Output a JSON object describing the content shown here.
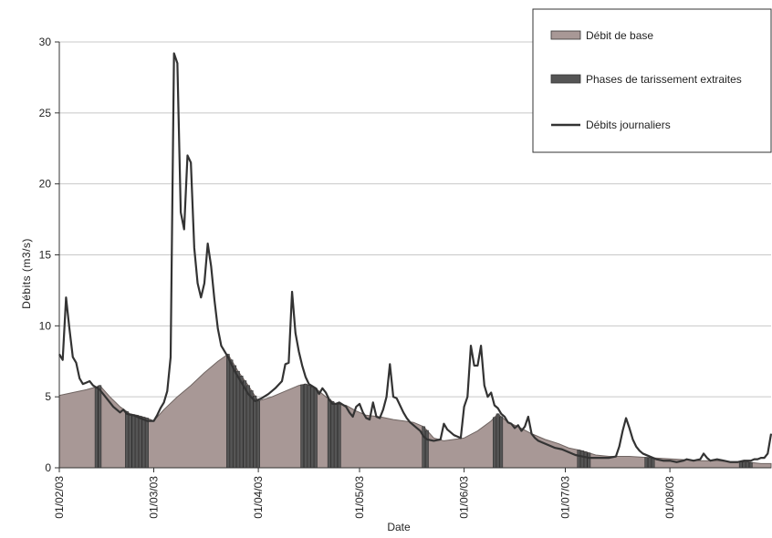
{
  "chart_data": {
    "type": "area",
    "xlabel": "Date",
    "ylabel": "Débits (m3/s)",
    "ylim": [
      0,
      30
    ],
    "y_ticks": [
      0,
      5,
      10,
      15,
      20,
      25,
      30
    ],
    "grid": "horizontal",
    "legend_position": "top-right",
    "x_ticks": [
      {
        "date": "2003-02-01",
        "label": "01/02/03"
      },
      {
        "date": "2003-03-01",
        "label": "01/03/03"
      },
      {
        "date": "2003-04-01",
        "label": "01/04/03"
      },
      {
        "date": "2003-05-01",
        "label": "01/05/03"
      },
      {
        "date": "2003-06-01",
        "label": "01/06/03"
      },
      {
        "date": "2003-07-01",
        "label": "01/07/03"
      },
      {
        "date": "2003-08-01",
        "label": "01/08/03"
      }
    ],
    "xlim": [
      "2003-02-01",
      "2003-08-31"
    ],
    "colors": {
      "base": "#a89896",
      "recession": "#555555",
      "daily": "#333333",
      "grid": "#c8c8c8",
      "axis": "#333333"
    },
    "series": [
      {
        "name": "Débit de base",
        "kind": "area",
        "points": [
          [
            "2003-02-01",
            5.1
          ],
          [
            "2003-02-05",
            5.3
          ],
          [
            "2003-02-09",
            5.5
          ],
          [
            "2003-02-12",
            5.7
          ],
          [
            "2003-02-13",
            5.8
          ],
          [
            "2003-02-16",
            5.0
          ],
          [
            "2003-02-19",
            4.3
          ],
          [
            "2003-02-22",
            3.8
          ],
          [
            "2003-02-24",
            3.7
          ],
          [
            "2003-02-27",
            3.5
          ],
          [
            "2003-03-01",
            3.3
          ],
          [
            "2003-03-04",
            4.1
          ],
          [
            "2003-03-08",
            5.0
          ],
          [
            "2003-03-12",
            5.8
          ],
          [
            "2003-03-16",
            6.7
          ],
          [
            "2003-03-20",
            7.5
          ],
          [
            "2003-03-23",
            8.0
          ],
          [
            "2003-03-26",
            6.8
          ],
          [
            "2003-03-29",
            5.8
          ],
          [
            "2003-04-01",
            4.7
          ],
          [
            "2003-04-05",
            5.0
          ],
          [
            "2003-04-09",
            5.4
          ],
          [
            "2003-04-13",
            5.8
          ],
          [
            "2003-04-15",
            5.9
          ],
          [
            "2003-04-18",
            5.6
          ],
          [
            "2003-04-21",
            5.0
          ],
          [
            "2003-04-24",
            4.5
          ],
          [
            "2003-04-27",
            4.4
          ],
          [
            "2003-04-30",
            4.0
          ],
          [
            "2003-05-03",
            3.7
          ],
          [
            "2003-05-07",
            3.6
          ],
          [
            "2003-05-11",
            3.4
          ],
          [
            "2003-05-14",
            3.3
          ],
          [
            "2003-05-17",
            3.2
          ],
          [
            "2003-05-20",
            2.9
          ],
          [
            "2003-05-23",
            2.1
          ],
          [
            "2003-05-26",
            1.9
          ],
          [
            "2003-05-29",
            2.0
          ],
          [
            "2003-06-01",
            2.1
          ],
          [
            "2003-06-05",
            2.6
          ],
          [
            "2003-06-09",
            3.3
          ],
          [
            "2003-06-11",
            3.8
          ],
          [
            "2003-06-14",
            3.2
          ],
          [
            "2003-06-17",
            2.9
          ],
          [
            "2003-06-21",
            2.4
          ],
          [
            "2003-06-25",
            2.0
          ],
          [
            "2003-06-29",
            1.7
          ],
          [
            "2003-07-02",
            1.4
          ],
          [
            "2003-07-06",
            1.2
          ],
          [
            "2003-07-10",
            0.9
          ],
          [
            "2003-07-14",
            0.8
          ],
          [
            "2003-07-20",
            0.8
          ],
          [
            "2003-07-27",
            0.7
          ],
          [
            "2003-08-03",
            0.6
          ],
          [
            "2003-08-10",
            0.5
          ],
          [
            "2003-08-15",
            0.5
          ],
          [
            "2003-08-20",
            0.4
          ],
          [
            "2003-08-24",
            0.4
          ],
          [
            "2003-08-28",
            0.3
          ],
          [
            "2003-08-31",
            0.3
          ]
        ]
      },
      {
        "name": "Phases de tarissement extraites",
        "kind": "bars",
        "periods": [
          [
            "2003-02-12",
            "2003-02-13"
          ],
          [
            "2003-02-21",
            "2003-02-27"
          ],
          [
            "2003-03-23",
            "2003-04-01"
          ],
          [
            "2003-04-14",
            "2003-04-18"
          ],
          [
            "2003-04-22",
            "2003-04-25"
          ],
          [
            "2003-05-20",
            "2003-05-21"
          ],
          [
            "2003-06-10",
            "2003-06-12"
          ],
          [
            "2003-07-05",
            "2003-07-08"
          ],
          [
            "2003-07-25",
            "2003-07-27"
          ],
          [
            "2003-08-22",
            "2003-08-25"
          ]
        ]
      },
      {
        "name": "Débits journaliers",
        "kind": "line",
        "points": [
          [
            "2003-02-01",
            8.0
          ],
          [
            "2003-02-02",
            7.6
          ],
          [
            "2003-02-03",
            12.0
          ],
          [
            "2003-02-04",
            9.8
          ],
          [
            "2003-02-05",
            7.8
          ],
          [
            "2003-02-06",
            7.4
          ],
          [
            "2003-02-07",
            6.3
          ],
          [
            "2003-02-08",
            5.9
          ],
          [
            "2003-02-09",
            6.0
          ],
          [
            "2003-02-10",
            6.1
          ],
          [
            "2003-02-11",
            5.8
          ],
          [
            "2003-02-13",
            5.5
          ],
          [
            "2003-02-15",
            4.9
          ],
          [
            "2003-02-17",
            4.3
          ],
          [
            "2003-02-19",
            3.9
          ],
          [
            "2003-02-20",
            4.1
          ],
          [
            "2003-02-21",
            3.8
          ],
          [
            "2003-02-23",
            3.7
          ],
          [
            "2003-02-25",
            3.5
          ],
          [
            "2003-02-27",
            3.3
          ],
          [
            "2003-03-01",
            3.3
          ],
          [
            "2003-03-02",
            3.7
          ],
          [
            "2003-03-03",
            4.2
          ],
          [
            "2003-03-04",
            4.6
          ],
          [
            "2003-03-05",
            5.4
          ],
          [
            "2003-03-06",
            7.8
          ],
          [
            "2003-03-07",
            29.2
          ],
          [
            "2003-03-08",
            28.5
          ],
          [
            "2003-03-09",
            18.0
          ],
          [
            "2003-03-10",
            16.8
          ],
          [
            "2003-03-11",
            22.0
          ],
          [
            "2003-03-12",
            21.5
          ],
          [
            "2003-03-13",
            15.5
          ],
          [
            "2003-03-14",
            13.0
          ],
          [
            "2003-03-15",
            12.0
          ],
          [
            "2003-03-16",
            13.0
          ],
          [
            "2003-03-17",
            15.8
          ],
          [
            "2003-03-18",
            14.2
          ],
          [
            "2003-03-19",
            11.8
          ],
          [
            "2003-03-20",
            9.8
          ],
          [
            "2003-03-21",
            8.6
          ],
          [
            "2003-03-23",
            7.8
          ],
          [
            "2003-03-25",
            6.8
          ],
          [
            "2003-03-27",
            6.0
          ],
          [
            "2003-03-29",
            5.2
          ],
          [
            "2003-03-31",
            4.7
          ],
          [
            "2003-04-02",
            4.9
          ],
          [
            "2003-04-04",
            5.2
          ],
          [
            "2003-04-06",
            5.6
          ],
          [
            "2003-04-08",
            6.1
          ],
          [
            "2003-04-09",
            7.3
          ],
          [
            "2003-04-10",
            7.4
          ],
          [
            "2003-04-11",
            12.4
          ],
          [
            "2003-04-12",
            9.5
          ],
          [
            "2003-04-13",
            8.2
          ],
          [
            "2003-04-14",
            7.2
          ],
          [
            "2003-04-15",
            6.4
          ],
          [
            "2003-04-16",
            5.9
          ],
          [
            "2003-04-18",
            5.6
          ],
          [
            "2003-04-19",
            5.2
          ],
          [
            "2003-04-20",
            5.6
          ],
          [
            "2003-04-21",
            5.3
          ],
          [
            "2003-04-22",
            4.8
          ],
          [
            "2003-04-23",
            4.5
          ],
          [
            "2003-04-24",
            4.5
          ],
          [
            "2003-04-25",
            4.6
          ],
          [
            "2003-04-27",
            4.3
          ],
          [
            "2003-04-28",
            3.9
          ],
          [
            "2003-04-29",
            3.6
          ],
          [
            "2003-04-30",
            4.3
          ],
          [
            "2003-05-01",
            4.5
          ],
          [
            "2003-05-02",
            3.9
          ],
          [
            "2003-05-03",
            3.5
          ],
          [
            "2003-05-04",
            3.4
          ],
          [
            "2003-05-05",
            4.6
          ],
          [
            "2003-05-06",
            3.6
          ],
          [
            "2003-05-07",
            3.5
          ],
          [
            "2003-05-08",
            4.1
          ],
          [
            "2003-05-09",
            5.0
          ],
          [
            "2003-05-10",
            7.3
          ],
          [
            "2003-05-11",
            5.0
          ],
          [
            "2003-05-12",
            4.9
          ],
          [
            "2003-05-13",
            4.4
          ],
          [
            "2003-05-14",
            3.9
          ],
          [
            "2003-05-15",
            3.5
          ],
          [
            "2003-05-16",
            3.2
          ],
          [
            "2003-05-17",
            3.0
          ],
          [
            "2003-05-19",
            2.6
          ],
          [
            "2003-05-20",
            2.2
          ],
          [
            "2003-05-21",
            2.0
          ],
          [
            "2003-05-23",
            1.9
          ],
          [
            "2003-05-25",
            2.0
          ],
          [
            "2003-05-26",
            3.1
          ],
          [
            "2003-05-27",
            2.7
          ],
          [
            "2003-05-28",
            2.5
          ],
          [
            "2003-05-29",
            2.3
          ],
          [
            "2003-05-30",
            2.2
          ],
          [
            "2003-05-31",
            2.1
          ],
          [
            "2003-06-01",
            4.3
          ],
          [
            "2003-06-02",
            5.0
          ],
          [
            "2003-06-03",
            8.6
          ],
          [
            "2003-06-04",
            7.2
          ],
          [
            "2003-06-05",
            7.2
          ],
          [
            "2003-06-06",
            8.6
          ],
          [
            "2003-06-07",
            5.8
          ],
          [
            "2003-06-08",
            5.0
          ],
          [
            "2003-06-09",
            5.3
          ],
          [
            "2003-06-10",
            4.4
          ],
          [
            "2003-06-11",
            4.2
          ],
          [
            "2003-06-12",
            3.8
          ],
          [
            "2003-06-13",
            3.6
          ],
          [
            "2003-06-14",
            3.2
          ],
          [
            "2003-06-15",
            3.1
          ],
          [
            "2003-06-16",
            2.8
          ],
          [
            "2003-06-17",
            3.0
          ],
          [
            "2003-06-18",
            2.6
          ],
          [
            "2003-06-19",
            2.9
          ],
          [
            "2003-06-20",
            3.6
          ],
          [
            "2003-06-21",
            2.4
          ],
          [
            "2003-06-22",
            2.1
          ],
          [
            "2003-06-23",
            1.9
          ],
          [
            "2003-06-24",
            1.8
          ],
          [
            "2003-06-26",
            1.6
          ],
          [
            "2003-06-28",
            1.4
          ],
          [
            "2003-06-30",
            1.3
          ],
          [
            "2003-07-02",
            1.1
          ],
          [
            "2003-07-04",
            0.9
          ],
          [
            "2003-07-06",
            0.8
          ],
          [
            "2003-07-08",
            0.7
          ],
          [
            "2003-07-11",
            0.7
          ],
          [
            "2003-07-14",
            0.7
          ],
          [
            "2003-07-16",
            0.8
          ],
          [
            "2003-07-17",
            1.5
          ],
          [
            "2003-07-18",
            2.6
          ],
          [
            "2003-07-19",
            3.5
          ],
          [
            "2003-07-20",
            2.8
          ],
          [
            "2003-07-21",
            2.0
          ],
          [
            "2003-07-22",
            1.5
          ],
          [
            "2003-07-23",
            1.2
          ],
          [
            "2003-07-24",
            1.0
          ],
          [
            "2003-07-26",
            0.8
          ],
          [
            "2003-07-28",
            0.6
          ],
          [
            "2003-07-30",
            0.5
          ],
          [
            "2003-08-01",
            0.5
          ],
          [
            "2003-08-03",
            0.4
          ],
          [
            "2003-08-05",
            0.5
          ],
          [
            "2003-08-06",
            0.6
          ],
          [
            "2003-08-08",
            0.5
          ],
          [
            "2003-08-10",
            0.6
          ],
          [
            "2003-08-11",
            1.0
          ],
          [
            "2003-08-12",
            0.7
          ],
          [
            "2003-08-13",
            0.5
          ],
          [
            "2003-08-15",
            0.6
          ],
          [
            "2003-08-17",
            0.5
          ],
          [
            "2003-08-19",
            0.4
          ],
          [
            "2003-08-21",
            0.4
          ],
          [
            "2003-08-23",
            0.5
          ],
          [
            "2003-08-25",
            0.5
          ],
          [
            "2003-08-26",
            0.6
          ],
          [
            "2003-08-27",
            0.6
          ],
          [
            "2003-08-28",
            0.7
          ],
          [
            "2003-08-29",
            0.7
          ],
          [
            "2003-08-30",
            1.0
          ],
          [
            "2003-08-31",
            2.4
          ]
        ]
      }
    ]
  },
  "legend": {
    "items": [
      {
        "label": "Débit de base",
        "swatch": "box",
        "color": "#a89896"
      },
      {
        "label": "Phases de tarissement extraites",
        "swatch": "box",
        "color": "#555555"
      },
      {
        "label": "Débits journaliers",
        "swatch": "line",
        "color": "#333333"
      }
    ]
  }
}
